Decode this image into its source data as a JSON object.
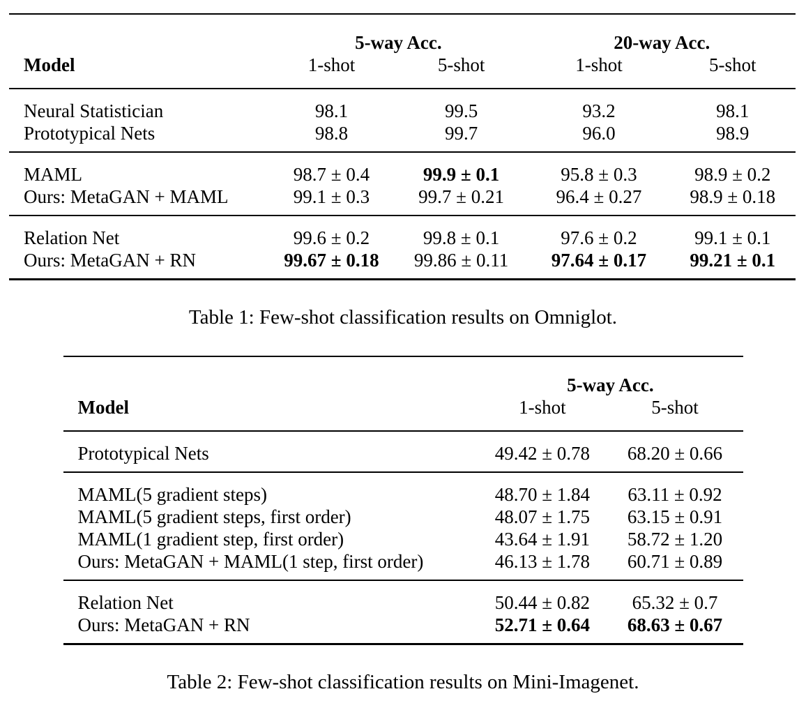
{
  "page": {
    "background": "#ffffff",
    "text_color": "#000000",
    "rule_color": "#000000"
  },
  "tables": [
    {
      "id": "omniglot-results",
      "caption": "Table 1: Few-shot classification results on Omniglot.",
      "col_widths": [
        "33%",
        "16%",
        "17%",
        "18%",
        "16%"
      ],
      "header": {
        "model_label": "Model",
        "groups": [
          {
            "label": "5-way Acc.",
            "span": 2
          },
          {
            "label": "20-way Acc.",
            "span": 2
          }
        ],
        "subcolumns": [
          "1-shot",
          "5-shot",
          "1-shot",
          "5-shot"
        ]
      },
      "sections": [
        {
          "rows": [
            {
              "model": "Neural Statistician",
              "cells": [
                {
                  "text": "98.1",
                  "bold": false
                },
                {
                  "text": "99.5",
                  "bold": false
                },
                {
                  "text": "93.2",
                  "bold": false
                },
                {
                  "text": "98.1",
                  "bold": false
                }
              ]
            },
            {
              "model": "Prototypical Nets",
              "cells": [
                {
                  "text": "98.8",
                  "bold": false
                },
                {
                  "text": "99.7",
                  "bold": false
                },
                {
                  "text": "96.0",
                  "bold": false
                },
                {
                  "text": "98.9",
                  "bold": false
                }
              ]
            }
          ]
        },
        {
          "rows": [
            {
              "model": "MAML",
              "cells": [
                {
                  "text": "98.7 ± 0.4",
                  "bold": false
                },
                {
                  "text": "99.9 ± 0.1",
                  "bold": true
                },
                {
                  "text": "95.8 ± 0.3",
                  "bold": false
                },
                {
                  "text": "98.9 ± 0.2",
                  "bold": false
                }
              ]
            },
            {
              "model": "Ours: MetaGAN + MAML",
              "cells": [
                {
                  "text": "99.1 ± 0.3",
                  "bold": false
                },
                {
                  "text": "99.7 ± 0.21",
                  "bold": false
                },
                {
                  "text": "96.4 ± 0.27",
                  "bold": false
                },
                {
                  "text": "98.9 ± 0.18",
                  "bold": false
                }
              ]
            }
          ]
        },
        {
          "rows": [
            {
              "model": "Relation Net",
              "cells": [
                {
                  "text": "99.6 ± 0.2",
                  "bold": false
                },
                {
                  "text": "99.8 ± 0.1",
                  "bold": false
                },
                {
                  "text": "97.6 ± 0.2",
                  "bold": false
                },
                {
                  "text": "99.1 ± 0.1",
                  "bold": false
                }
              ]
            },
            {
              "model": "Ours: MetaGAN + RN",
              "cells": [
                {
                  "text": "99.67 ± 0.18",
                  "bold": true
                },
                {
                  "text": "99.86 ± 0.11",
                  "bold": false
                },
                {
                  "text": "97.64 ± 0.17",
                  "bold": true
                },
                {
                  "text": "99.21 ± 0.1",
                  "bold": true
                }
              ]
            }
          ]
        }
      ]
    },
    {
      "id": "mini-imagenet-results",
      "caption": "Table 2: Few-shot classification results on Mini-Imagenet.",
      "col_widths": [
        "61%",
        "19%",
        "20%"
      ],
      "header": {
        "model_label": "Model",
        "groups": [
          {
            "label": "5-way Acc.",
            "span": 2
          }
        ],
        "subcolumns": [
          "1-shot",
          "5-shot"
        ]
      },
      "sections": [
        {
          "rows": [
            {
              "model": "Prototypical Nets",
              "cells": [
                {
                  "text": "49.42 ± 0.78",
                  "bold": false
                },
                {
                  "text": "68.20 ± 0.66",
                  "bold": false
                }
              ]
            }
          ]
        },
        {
          "rows": [
            {
              "model": "MAML(5 gradient steps)",
              "cells": [
                {
                  "text": "48.70 ± 1.84",
                  "bold": false
                },
                {
                  "text": "63.11 ± 0.92",
                  "bold": false
                }
              ]
            },
            {
              "model": "MAML(5 gradient steps, first order)",
              "cells": [
                {
                  "text": "48.07 ± 1.75",
                  "bold": false
                },
                {
                  "text": "63.15 ± 0.91",
                  "bold": false
                }
              ]
            },
            {
              "model": "MAML(1 gradient step, first order)",
              "cells": [
                {
                  "text": "43.64 ± 1.91",
                  "bold": false
                },
                {
                  "text": "58.72 ± 1.20",
                  "bold": false
                }
              ]
            },
            {
              "model": "Ours: MetaGAN + MAML(1 step, first order)",
              "cells": [
                {
                  "text": "46.13 ± 1.78",
                  "bold": false
                },
                {
                  "text": "60.71 ± 0.89",
                  "bold": false
                }
              ]
            }
          ]
        },
        {
          "rows": [
            {
              "model": "Relation Net",
              "cells": [
                {
                  "text": "50.44 ± 0.82",
                  "bold": false
                },
                {
                  "text": "65.32 ± 0.7",
                  "bold": false
                }
              ]
            },
            {
              "model": "Ours: MetaGAN + RN",
              "cells": [
                {
                  "text": "52.71 ± 0.64",
                  "bold": true
                },
                {
                  "text": "68.63 ± 0.67",
                  "bold": true
                }
              ]
            }
          ]
        }
      ]
    }
  ]
}
